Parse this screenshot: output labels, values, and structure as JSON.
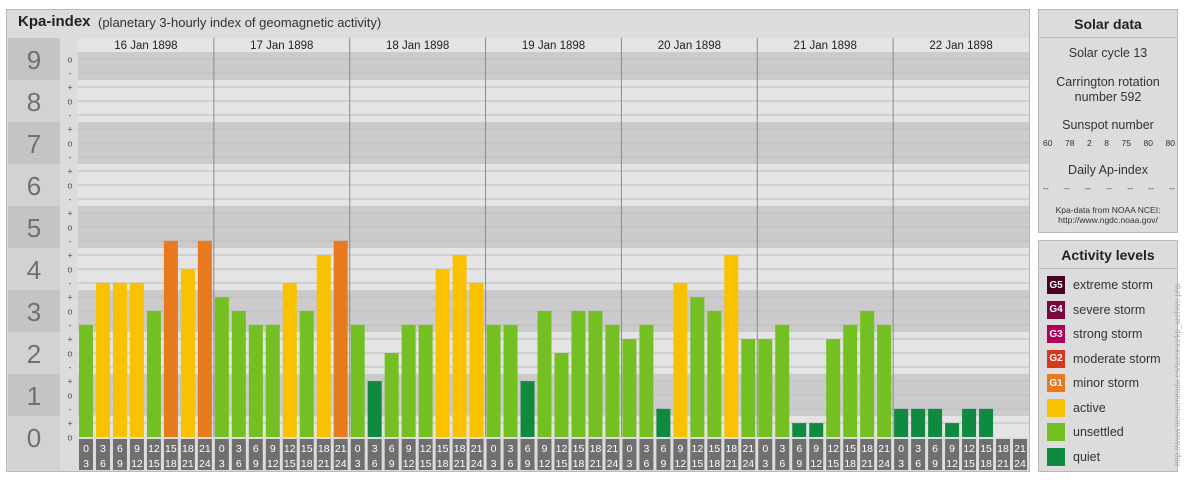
{
  "header": {
    "title": "Kpa-index",
    "subtitle": "(planetary 3-hourly index of geomagnetic activity)"
  },
  "solar_panel": {
    "title": "Solar data",
    "solar_cycle": "Solar cycle 13",
    "carrington_line1": "Carrington rotation",
    "carrington_line2": "number 592",
    "sunspot_title": "Sunspot number",
    "sunspot_values": [
      "60",
      "78",
      "2",
      "8",
      "75",
      "80",
      "80"
    ],
    "ap_title": "Daily Ap-index",
    "ap_values": [
      "--",
      "--",
      "--",
      "--",
      "--",
      "--",
      "--"
    ],
    "source_line1": "Kpa-data from NOAA NCEI:",
    "source_line2": "http://www.ngdc.noaa.gov/"
  },
  "legend": {
    "title": "Activity levels",
    "items": [
      {
        "code": "G5",
        "label": "extreme storm",
        "color": "#4a0021"
      },
      {
        "code": "G4",
        "label": "severe storm",
        "color": "#7a0640"
      },
      {
        "code": "G3",
        "label": "strong storm",
        "color": "#b0005c"
      },
      {
        "code": "G2",
        "label": "moderate storm",
        "color": "#d6381c"
      },
      {
        "code": "G1",
        "label": "minor storm",
        "color": "#e87a1e"
      },
      {
        "code": "",
        "label": "active",
        "color": "#f9c200"
      },
      {
        "code": "",
        "label": "unsettled",
        "color": "#74bf22"
      },
      {
        "code": "",
        "label": "quiet",
        "color": "#108a3e"
      }
    ]
  },
  "watermark": "http://www.tierraemirada.es/auroras/kp_archive.php",
  "chart_data": {
    "type": "bar",
    "title": "Kpa-index",
    "subtitle": "(planetary 3-hourly index of geomagnetic activity)",
    "ylim": [
      0,
      9
    ],
    "y_ticks": [
      "0",
      "1",
      "2",
      "3",
      "4",
      "5",
      "6",
      "7",
      "8",
      "9"
    ],
    "sub_ticks": [
      "-",
      "o",
      "+"
    ],
    "days": [
      "16 Jan 1898",
      "17 Jan 1898",
      "18 Jan 1898",
      "19 Jan 1898",
      "20 Jan 1898",
      "21 Jan 1898",
      "22 Jan 1898"
    ],
    "interval_top": [
      "0",
      "3",
      "6",
      "9",
      "12",
      "15",
      "18",
      "21"
    ],
    "interval_bottom": [
      "3",
      "6",
      "9",
      "12",
      "15",
      "18",
      "21",
      "24"
    ],
    "series": [
      {
        "values": [
          [
            2.67,
            3.67,
            3.67,
            3.67,
            3.0,
            4.67,
            4.0,
            4.67
          ],
          [
            3.33,
            3.0,
            2.67,
            2.67,
            3.67,
            3.0,
            4.33,
            4.67
          ],
          [
            2.67,
            1.33,
            2.0,
            2.67,
            2.67,
            4.0,
            4.33,
            3.67
          ],
          [
            2.67,
            2.67,
            1.33,
            3.0,
            2.0,
            3.0,
            3.0,
            2.67
          ],
          [
            2.33,
            2.67,
            0.67,
            3.67,
            3.33,
            3.0,
            4.33,
            2.33
          ],
          [
            2.33,
            2.67,
            0.33,
            0.33,
            2.33,
            2.67,
            3.0,
            2.67
          ],
          [
            0.67,
            0.67,
            0.67,
            0.33,
            0.67,
            0.67,
            0.0,
            0.0
          ]
        ]
      }
    ]
  }
}
